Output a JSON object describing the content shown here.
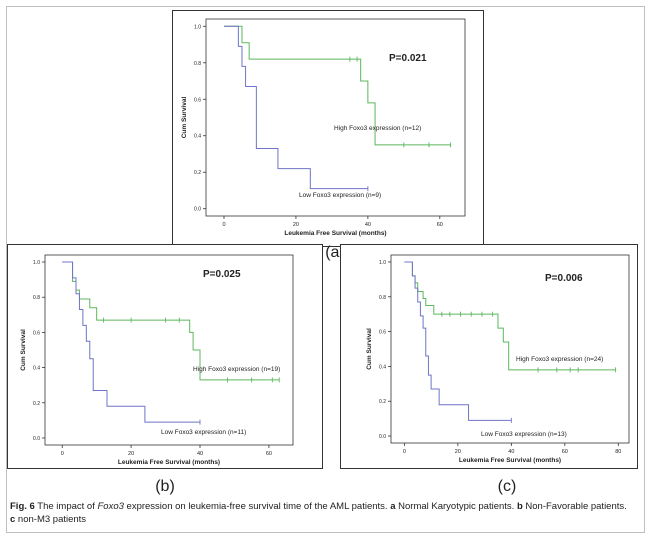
{
  "caption": {
    "fig_label": "Fig. 6",
    "text_pre": " The impact of ",
    "gene": "Foxo3",
    "text_mid": " expression on leukemia-free survival time of the AML patients. ",
    "a_label": "a",
    "a_text": " Normal Karyotypic patients. ",
    "b_label": "b",
    "b_text": " Non-Favorable patients. ",
    "c_label": "c",
    "c_text": " non-M3 patients"
  },
  "colors": {
    "high": "#5cb85c",
    "low": "#6f74c8",
    "axis": "#333333"
  },
  "chart_data": [
    {
      "id": "a",
      "panel_label": "(a)",
      "type": "line",
      "xlabel": "Leukemia Free Survival (months)",
      "ylabel": "Cum Survival",
      "xlim": [
        -5,
        67
      ],
      "ylim": [
        -0.04,
        1.04
      ],
      "xticks": [
        0,
        20,
        40,
        60
      ],
      "xtick_labels": [
        "0",
        "20",
        "40",
        "60"
      ],
      "yticks": [
        0.0,
        0.2,
        0.4,
        0.6,
        0.8,
        1.0
      ],
      "ytick_labels": [
        "0.0",
        "0.2",
        "0.4",
        "0.6",
        "0.8",
        "1.0"
      ],
      "pvalue": "P=0.021",
      "series": [
        {
          "name": "High Foxo3 expression (n=12)",
          "color_key": "high",
          "steps": [
            [
              0,
              1.0
            ],
            [
              5,
              0.91
            ],
            [
              7,
              0.82
            ],
            [
              38,
              0.7
            ],
            [
              40,
              0.58
            ],
            [
              42,
              0.35
            ],
            [
              63,
              0.35
            ]
          ],
          "censored": [
            [
              35,
              0.82
            ],
            [
              37,
              0.82
            ],
            [
              50,
              0.35
            ],
            [
              57,
              0.35
            ],
            [
              63,
              0.35
            ]
          ]
        },
        {
          "name": "Low Foxo3 expression (n=9)",
          "color_key": "low",
          "steps": [
            [
              0,
              1.0
            ],
            [
              4,
              0.89
            ],
            [
              5,
              0.78
            ],
            [
              6,
              0.67
            ],
            [
              9,
              0.33
            ],
            [
              15,
              0.22
            ],
            [
              24,
              0.11
            ],
            [
              40,
              0.11
            ]
          ],
          "censored": [
            [
              40,
              0.11
            ]
          ]
        }
      ]
    },
    {
      "id": "b",
      "panel_label": "(b)",
      "type": "line",
      "xlabel": "Leukemia Free Survival (months)",
      "ylabel": "Cum Survival",
      "xlim": [
        -5,
        67
      ],
      "ylim": [
        -0.04,
        1.04
      ],
      "xticks": [
        0,
        20,
        40,
        60
      ],
      "xtick_labels": [
        "0",
        "20",
        "40",
        "60"
      ],
      "yticks": [
        0.0,
        0.2,
        0.4,
        0.6,
        0.8,
        1.0
      ],
      "ytick_labels": [
        "0.0",
        "0.2",
        "0.4",
        "0.6",
        "0.8",
        "1.0"
      ],
      "pvalue": "P=0.025",
      "series": [
        {
          "name": "High Foxo3  expression (n=19)",
          "color_key": "high",
          "steps": [
            [
              0,
              1.0
            ],
            [
              3,
              0.89
            ],
            [
              4,
              0.84
            ],
            [
              5,
              0.79
            ],
            [
              8,
              0.74
            ],
            [
              10,
              0.67
            ],
            [
              37,
              0.6
            ],
            [
              38,
              0.5
            ],
            [
              40,
              0.33
            ],
            [
              63,
              0.33
            ]
          ],
          "censored": [
            [
              12,
              0.67
            ],
            [
              20,
              0.67
            ],
            [
              30,
              0.67
            ],
            [
              34,
              0.67
            ],
            [
              48,
              0.33
            ],
            [
              55,
              0.33
            ],
            [
              61,
              0.33
            ],
            [
              63,
              0.33
            ]
          ]
        },
        {
          "name": "Low Foxo3 expression (n=11)",
          "color_key": "low",
          "steps": [
            [
              0,
              1.0
            ],
            [
              3,
              0.91
            ],
            [
              4,
              0.82
            ],
            [
              5,
              0.73
            ],
            [
              6,
              0.64
            ],
            [
              7,
              0.55
            ],
            [
              8,
              0.45
            ],
            [
              9,
              0.27
            ],
            [
              13,
              0.18
            ],
            [
              24,
              0.09
            ],
            [
              40,
              0.09
            ]
          ],
          "censored": [
            [
              40,
              0.09
            ]
          ]
        }
      ]
    },
    {
      "id": "c",
      "panel_label": "(c)",
      "type": "line",
      "xlabel": "Leukemia Free Survival (months)",
      "ylabel": "Cum Survival",
      "xlim": [
        -5,
        84
      ],
      "ylim": [
        -0.04,
        1.04
      ],
      "xticks": [
        0,
        20,
        40,
        60,
        80
      ],
      "xtick_labels": [
        "0",
        "20",
        "40",
        "60",
        "80"
      ],
      "yticks": [
        0.0,
        0.2,
        0.4,
        0.6,
        0.8,
        1.0
      ],
      "ytick_labels": [
        "0.0",
        "0.2",
        "0.4",
        "0.6",
        "0.8",
        "1.0"
      ],
      "pvalue": "P=0.006",
      "series": [
        {
          "name": "High Foxo3 expression (n=24)",
          "color_key": "high",
          "steps": [
            [
              0,
              1.0
            ],
            [
              3,
              0.92
            ],
            [
              4,
              0.88
            ],
            [
              5,
              0.83
            ],
            [
              7,
              0.79
            ],
            [
              8,
              0.75
            ],
            [
              11,
              0.7
            ],
            [
              35,
              0.62
            ],
            [
              37,
              0.54
            ],
            [
              39,
              0.38
            ],
            [
              79,
              0.38
            ]
          ],
          "censored": [
            [
              14,
              0.7
            ],
            [
              17,
              0.7
            ],
            [
              21,
              0.7
            ],
            [
              25,
              0.7
            ],
            [
              29,
              0.7
            ],
            [
              33,
              0.7
            ],
            [
              50,
              0.38
            ],
            [
              57,
              0.38
            ],
            [
              62,
              0.38
            ],
            [
              65,
              0.38
            ],
            [
              79,
              0.38
            ]
          ]
        },
        {
          "name": "Low Foxo3 expression (n=13)",
          "color_key": "low",
          "steps": [
            [
              0,
              1.0
            ],
            [
              3,
              0.92
            ],
            [
              4,
              0.85
            ],
            [
              5,
              0.77
            ],
            [
              6,
              0.69
            ],
            [
              7,
              0.62
            ],
            [
              8,
              0.46
            ],
            [
              9,
              0.35
            ],
            [
              10,
              0.27
            ],
            [
              13,
              0.18
            ],
            [
              24,
              0.09
            ],
            [
              40,
              0.09
            ]
          ],
          "censored": [
            [
              40,
              0.09
            ]
          ]
        }
      ]
    }
  ]
}
